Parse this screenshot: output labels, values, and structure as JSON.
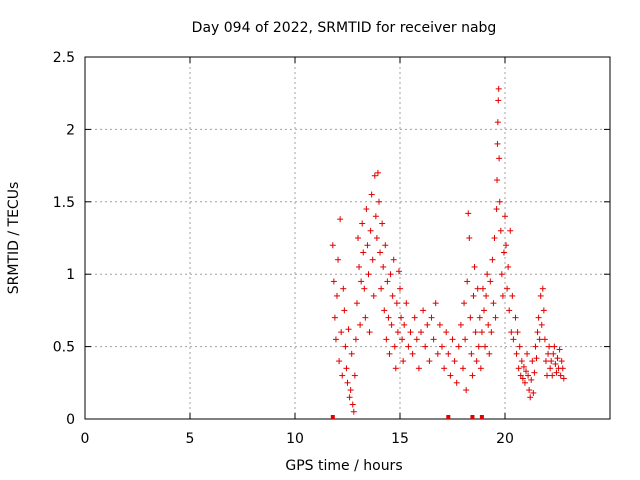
{
  "chart_data": {
    "type": "scatter",
    "title": "Day 094 of 2022, SRMTID for receiver nabg",
    "xlabel": "GPS time / hours",
    "ylabel": "SRMTID / TECUs",
    "xlim": [
      0,
      25
    ],
    "ylim": [
      0,
      2.5
    ],
    "xticks": [
      0,
      5,
      10,
      15,
      20
    ],
    "yticks": [
      0,
      0.5,
      1,
      1.5,
      2,
      2.5
    ],
    "ytick_labels": [
      "0",
      "0.5",
      "1",
      "1.5",
      "2",
      "2.5"
    ],
    "grid": true,
    "marker": "plus",
    "color": "#e00000",
    "points": [
      [
        11.8,
        1.2
      ],
      [
        11.85,
        0.95
      ],
      [
        11.9,
        0.7
      ],
      [
        11.95,
        0.55
      ],
      [
        12.0,
        0.85
      ],
      [
        12.05,
        1.1
      ],
      [
        12.1,
        0.4
      ],
      [
        12.15,
        1.38
      ],
      [
        12.2,
        0.6
      ],
      [
        12.25,
        0.3
      ],
      [
        12.3,
        0.9
      ],
      [
        12.35,
        0.75
      ],
      [
        12.4,
        0.5
      ],
      [
        12.45,
        0.35
      ],
      [
        12.5,
        0.25
      ],
      [
        12.55,
        0.62
      ],
      [
        12.6,
        0.15
      ],
      [
        12.65,
        0.2
      ],
      [
        12.7,
        0.45
      ],
      [
        12.75,
        0.1
      ],
      [
        12.8,
        0.05
      ],
      [
        12.85,
        0.3
      ],
      [
        12.9,
        0.55
      ],
      [
        12.95,
        0.8
      ],
      [
        13.0,
        1.25
      ],
      [
        13.05,
        1.05
      ],
      [
        13.1,
        0.65
      ],
      [
        13.15,
        0.95
      ],
      [
        13.2,
        1.35
      ],
      [
        13.25,
        1.15
      ],
      [
        13.3,
        0.9
      ],
      [
        13.35,
        0.7
      ],
      [
        13.4,
        1.45
      ],
      [
        13.45,
        1.2
      ],
      [
        13.5,
        1.0
      ],
      [
        13.55,
        0.6
      ],
      [
        13.6,
        1.3
      ],
      [
        13.65,
        1.55
      ],
      [
        13.7,
        1.1
      ],
      [
        13.75,
        0.85
      ],
      [
        13.8,
        1.68
      ],
      [
        13.85,
        1.4
      ],
      [
        13.9,
        1.25
      ],
      [
        13.95,
        1.7
      ],
      [
        14.0,
        1.5
      ],
      [
        14.05,
        1.15
      ],
      [
        14.1,
        0.9
      ],
      [
        14.15,
        1.35
      ],
      [
        14.2,
        1.05
      ],
      [
        14.25,
        0.75
      ],
      [
        14.3,
        1.2
      ],
      [
        14.35,
        0.55
      ],
      [
        14.4,
        0.95
      ],
      [
        14.45,
        0.7
      ],
      [
        14.5,
        0.45
      ],
      [
        14.55,
        1.0
      ],
      [
        14.6,
        0.65
      ],
      [
        14.65,
        0.85
      ],
      [
        14.7,
        1.1
      ],
      [
        14.75,
        0.5
      ],
      [
        14.8,
        0.35
      ],
      [
        14.85,
        0.8
      ],
      [
        14.9,
        0.6
      ],
      [
        14.95,
        1.02
      ],
      [
        15.0,
        0.9
      ],
      [
        15.05,
        0.7
      ],
      [
        15.1,
        0.55
      ],
      [
        15.15,
        0.4
      ],
      [
        15.2,
        0.65
      ],
      [
        15.3,
        0.8
      ],
      [
        15.4,
        0.5
      ],
      [
        15.5,
        0.6
      ],
      [
        15.6,
        0.45
      ],
      [
        15.7,
        0.7
      ],
      [
        15.8,
        0.55
      ],
      [
        15.9,
        0.35
      ],
      [
        16.0,
        0.6
      ],
      [
        16.1,
        0.75
      ],
      [
        16.2,
        0.5
      ],
      [
        16.3,
        0.65
      ],
      [
        16.4,
        0.4
      ],
      [
        16.5,
        0.7
      ],
      [
        16.6,
        0.55
      ],
      [
        16.7,
        0.8
      ],
      [
        16.8,
        0.45
      ],
      [
        16.9,
        0.65
      ],
      [
        17.0,
        0.5
      ],
      [
        17.1,
        0.35
      ],
      [
        17.2,
        0.6
      ],
      [
        17.3,
        0.45
      ],
      [
        17.4,
        0.3
      ],
      [
        17.5,
        0.55
      ],
      [
        17.6,
        0.4
      ],
      [
        17.7,
        0.25
      ],
      [
        17.8,
        0.5
      ],
      [
        17.9,
        0.65
      ],
      [
        18.0,
        0.35
      ],
      [
        18.05,
        0.8
      ],
      [
        18.1,
        0.55
      ],
      [
        18.15,
        0.2
      ],
      [
        18.2,
        0.95
      ],
      [
        18.25,
        1.42
      ],
      [
        18.3,
        1.25
      ],
      [
        18.35,
        0.7
      ],
      [
        18.4,
        0.45
      ],
      [
        18.45,
        0.3
      ],
      [
        18.5,
        0.85
      ],
      [
        18.55,
        1.05
      ],
      [
        18.6,
        0.6
      ],
      [
        18.65,
        0.4
      ],
      [
        18.7,
        0.9
      ],
      [
        18.75,
        0.5
      ],
      [
        18.8,
        0.7
      ],
      [
        18.85,
        0.35
      ],
      [
        18.9,
        0.6
      ],
      [
        18.95,
        0.9
      ],
      [
        19.0,
        0.75
      ],
      [
        19.05,
        0.5
      ],
      [
        19.1,
        0.85
      ],
      [
        19.15,
        1.0
      ],
      [
        19.2,
        0.65
      ],
      [
        19.25,
        0.45
      ],
      [
        19.3,
        0.95
      ],
      [
        19.35,
        0.6
      ],
      [
        19.4,
        1.1
      ],
      [
        19.45,
        0.8
      ],
      [
        19.5,
        1.25
      ],
      [
        19.55,
        0.7
      ],
      [
        19.6,
        1.45
      ],
      [
        19.62,
        1.65
      ],
      [
        19.64,
        1.9
      ],
      [
        19.66,
        2.05
      ],
      [
        19.68,
        2.2
      ],
      [
        19.7,
        2.28
      ],
      [
        19.72,
        1.8
      ],
      [
        19.75,
        1.5
      ],
      [
        19.8,
        1.3
      ],
      [
        19.85,
        1.0
      ],
      [
        19.9,
        0.85
      ],
      [
        19.95,
        1.15
      ],
      [
        20.0,
        1.4
      ],
      [
        20.05,
        1.2
      ],
      [
        20.1,
        0.9
      ],
      [
        20.15,
        1.05
      ],
      [
        20.2,
        0.75
      ],
      [
        20.25,
        1.3
      ],
      [
        20.3,
        0.6
      ],
      [
        20.35,
        0.85
      ],
      [
        20.4,
        0.55
      ],
      [
        20.5,
        0.7
      ],
      [
        20.55,
        0.45
      ],
      [
        20.6,
        0.6
      ],
      [
        20.65,
        0.35
      ],
      [
        20.7,
        0.5
      ],
      [
        20.75,
        0.3
      ],
      [
        20.8,
        0.4
      ],
      [
        20.85,
        0.28
      ],
      [
        20.9,
        0.36
      ],
      [
        20.95,
        0.25
      ],
      [
        21.0,
        0.33
      ],
      [
        21.05,
        0.45
      ],
      [
        21.1,
        0.3
      ],
      [
        21.15,
        0.2
      ],
      [
        21.2,
        0.15
      ],
      [
        21.25,
        0.27
      ],
      [
        21.3,
        0.4
      ],
      [
        21.35,
        0.18
      ],
      [
        21.4,
        0.32
      ],
      [
        21.45,
        0.5
      ],
      [
        21.5,
        0.42
      ],
      [
        21.55,
        0.6
      ],
      [
        21.6,
        0.7
      ],
      [
        21.65,
        0.55
      ],
      [
        21.7,
        0.85
      ],
      [
        21.75,
        0.65
      ],
      [
        21.8,
        0.9
      ],
      [
        21.85,
        0.75
      ],
      [
        21.9,
        0.55
      ],
      [
        21.95,
        0.4
      ],
      [
        22.0,
        0.3
      ],
      [
        22.05,
        0.45
      ],
      [
        22.1,
        0.5
      ],
      [
        22.15,
        0.35
      ],
      [
        22.2,
        0.4
      ],
      [
        22.25,
        0.3
      ],
      [
        22.3,
        0.45
      ],
      [
        22.35,
        0.5
      ],
      [
        22.4,
        0.38
      ],
      [
        22.45,
        0.32
      ],
      [
        22.5,
        0.42
      ],
      [
        22.55,
        0.35
      ],
      [
        22.6,
        0.48
      ],
      [
        22.65,
        0.3
      ],
      [
        22.7,
        0.4
      ],
      [
        22.75,
        0.35
      ],
      [
        22.8,
        0.28
      ]
    ],
    "zero_markers_x": [
      11.8,
      17.3,
      18.45,
      18.9
    ]
  }
}
